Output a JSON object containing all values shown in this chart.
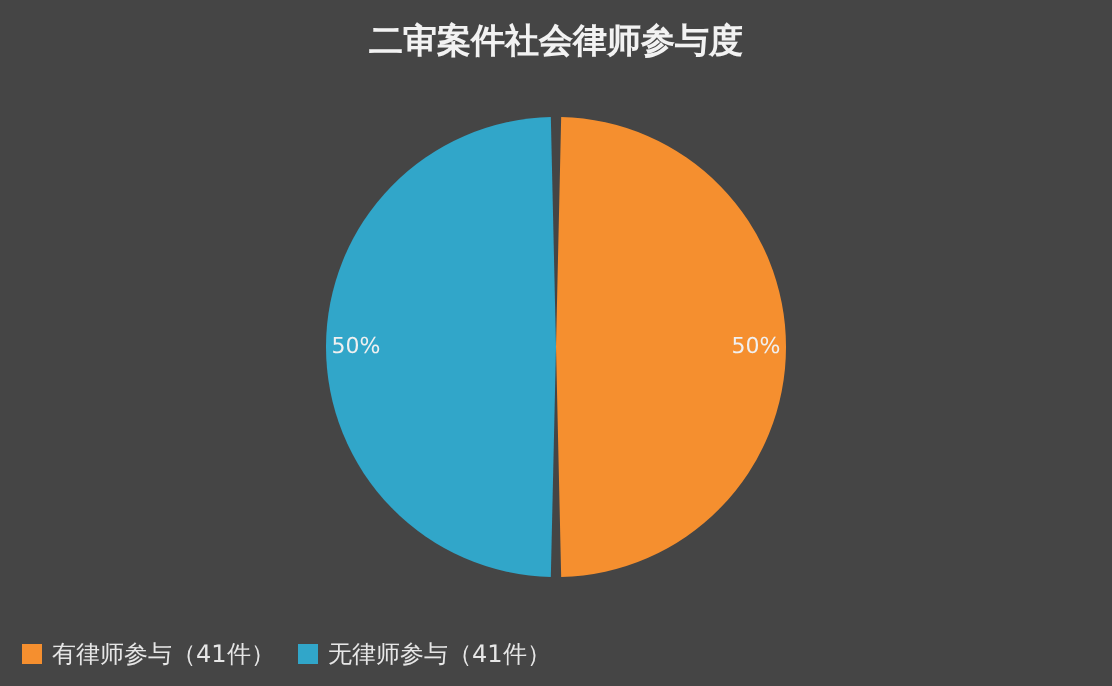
{
  "chart_data": {
    "type": "pie",
    "title": "二审案件社会律师参与度",
    "categories": [
      "有律师参与（41件）",
      "无律师参与（41件）"
    ],
    "values": [
      50,
      50
    ],
    "colors": [
      "#f58f2f",
      "#31a6c9"
    ],
    "value_labels": [
      "50%",
      "50%"
    ],
    "legend": "bottom"
  }
}
